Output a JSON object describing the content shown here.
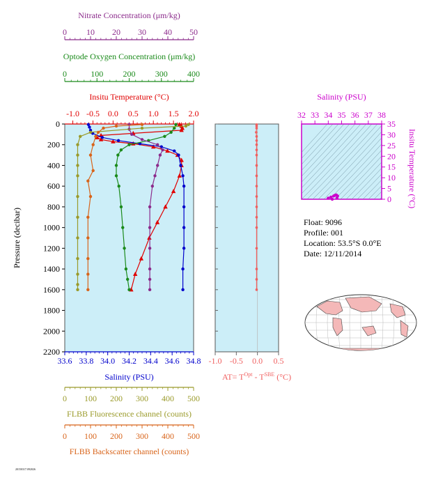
{
  "colors": {
    "nitrate": "#8b2a8b",
    "oxygen": "#1a8a1a",
    "temperature": "#e00000",
    "salinity": "#0000cc",
    "fluorescence": "#9a9a2a",
    "backscatter": "#d8641a",
    "at": "#f06060",
    "insitu_temp_axis": "#cc00cc",
    "panel_bg": "#cceef8",
    "map_land": "#f4b8b8"
  },
  "float_info": {
    "float": "Float:  9096",
    "profile": "Profile:  001",
    "location": "Location:  53.5°S   0.0°E",
    "date": "Date:  12/11/2014"
  },
  "footer": {
    "tiny_text": "20150317.092026"
  },
  "chart_data": [
    {
      "type": "line",
      "panel": "main-profile",
      "ylabel": "Pressure (decibar)",
      "ylim": [
        2200,
        0
      ],
      "yticks": [
        0,
        200,
        400,
        600,
        800,
        1000,
        1200,
        1400,
        1600,
        1800,
        2000,
        2200
      ],
      "axes": {
        "nitrate": {
          "label": "Nitrate Concentration (μm/kg)",
          "range": [
            0,
            50
          ],
          "ticks": [
            0,
            10,
            20,
            30,
            40,
            50
          ]
        },
        "oxygen": {
          "label": "Optode Oxygen Concentration (μm/kg)",
          "range": [
            0,
            400
          ],
          "ticks": [
            0,
            100,
            200,
            300,
            400
          ]
        },
        "temperature": {
          "label": "Insitu Temperature (°C)",
          "range": [
            -1.2,
            2.0
          ],
          "ticks": [
            -1.0,
            -0.5,
            0.0,
            0.5,
            1.0,
            1.5,
            2.0
          ]
        },
        "salinity": {
          "label": "Salinity (PSU)",
          "range": [
            33.6,
            34.8
          ],
          "ticks": [
            33.6,
            33.8,
            34.0,
            34.2,
            34.4,
            34.6,
            34.8
          ]
        },
        "fluorescence": {
          "label": "FLBB Fluorescence channel (counts)",
          "range": [
            0,
            500
          ],
          "ticks": [
            0,
            100,
            200,
            300,
            400,
            500
          ]
        },
        "backscatter": {
          "label": "FLBB Backscatter channel (counts)",
          "range": [
            0,
            500
          ],
          "ticks": [
            0,
            100,
            200,
            300,
            400,
            500
          ]
        }
      },
      "series": [
        {
          "key": "temperature",
          "marker": "triangle",
          "x": [
            1.65,
            1.7,
            1.72,
            1.7,
            0.5,
            -0.3,
            -0.4,
            -0.3,
            0.0,
            0.5,
            1.0,
            1.35,
            1.6,
            1.7,
            1.7,
            1.65,
            1.5,
            1.3,
            1.1,
            0.9,
            0.7,
            0.55,
            0.45
          ],
          "y": [
            5,
            20,
            40,
            60,
            90,
            110,
            130,
            150,
            170,
            190,
            220,
            260,
            300,
            350,
            400,
            500,
            650,
            800,
            950,
            1100,
            1300,
            1450,
            1600
          ]
        },
        {
          "key": "salinity",
          "marker": "circle",
          "x": [
            33.82,
            33.83,
            33.84,
            33.86,
            33.95,
            34.1,
            34.3,
            34.5,
            34.62,
            34.66,
            34.68,
            34.7,
            34.71,
            34.71,
            34.71,
            34.71,
            34.7,
            34.7
          ],
          "y": [
            5,
            30,
            60,
            90,
            130,
            160,
            190,
            220,
            260,
            300,
            400,
            500,
            600,
            800,
            1000,
            1200,
            1400,
            1600
          ]
        },
        {
          "key": "oxygen",
          "marker": "circle",
          "x": [
            345,
            340,
            330,
            310,
            260,
            200,
            175,
            165,
            160,
            160,
            168,
            175,
            180,
            185,
            190,
            195,
            200
          ],
          "y": [
            5,
            40,
            80,
            120,
            160,
            200,
            250,
            300,
            400,
            500,
            600,
            800,
            1000,
            1200,
            1400,
            1500,
            1600
          ]
        },
        {
          "key": "nitrate",
          "marker": "circle",
          "x": [
            25,
            25,
            26,
            30,
            36,
            38,
            37,
            36,
            35,
            34,
            33,
            33,
            33,
            33,
            33,
            33
          ],
          "y": [
            5,
            50,
            100,
            150,
            200,
            250,
            300,
            400,
            500,
            600,
            800,
            1000,
            1200,
            1400,
            1500,
            1600
          ]
        },
        {
          "key": "fluorescence",
          "marker": "circle",
          "x": [
            480,
            470,
            300,
            100,
            60,
            50,
            50,
            50,
            50,
            50,
            50,
            50,
            50,
            50,
            50,
            50
          ],
          "y": [
            5,
            20,
            40,
            80,
            120,
            200,
            300,
            400,
            500,
            700,
            900,
            1100,
            1300,
            1450,
            1550,
            1600
          ]
        },
        {
          "key": "backscatter",
          "marker": "circle",
          "x": [
            300,
            200,
            150,
            130,
            120,
            110,
            100,
            110,
            90,
            100,
            90,
            90,
            90,
            90,
            90
          ],
          "y": [
            5,
            20,
            40,
            80,
            120,
            200,
            300,
            450,
            550,
            700,
            900,
            1100,
            1300,
            1450,
            1600
          ]
        }
      ]
    },
    {
      "type": "line",
      "panel": "delta-temperature",
      "xlabel_parts": {
        "base": "AT= T",
        "sup1": "Opt",
        "mid": " - T",
        "sup2": "SBE",
        "unit": " (°C)"
      },
      "xlim": [
        -1.0,
        0.5
      ],
      "xticks": [
        -1.0,
        -0.5,
        0.0,
        0.5
      ],
      "ylim": [
        2200,
        0
      ],
      "series": [
        {
          "name": "",
          "x": [
            -0.02,
            -0.02,
            -0.02,
            -0.03,
            -0.02,
            -0.02,
            -0.02,
            -0.02,
            -0.02,
            -0.02,
            -0.02,
            -0.02,
            -0.02,
            -0.02,
            -0.02,
            -0.02,
            -0.02,
            -0.02,
            -0.02,
            -0.02
          ],
          "y": [
            5,
            20,
            40,
            80,
            120,
            160,
            200,
            250,
            300,
            400,
            500,
            600,
            700,
            800,
            900,
            1000,
            1200,
            1400,
            1500,
            1600
          ]
        }
      ]
    },
    {
      "type": "scatter",
      "panel": "ts-diagram",
      "xlabel": "Salinity (PSU)",
      "ylabel": "Insitu Temperature (°C)",
      "xlim": [
        32,
        38
      ],
      "ylim": [
        0,
        35
      ],
      "xticks": [
        32,
        33,
        34,
        35,
        36,
        37,
        38
      ],
      "yticks": [
        0,
        5,
        10,
        15,
        20,
        25,
        30,
        35
      ],
      "points_x": [
        34.0,
        34.2,
        34.4,
        34.5,
        34.6,
        34.7,
        34.65,
        34.3
      ],
      "points_y": [
        0.5,
        1.0,
        1.5,
        1.8,
        2.0,
        1.5,
        0.5,
        0.0
      ]
    }
  ]
}
